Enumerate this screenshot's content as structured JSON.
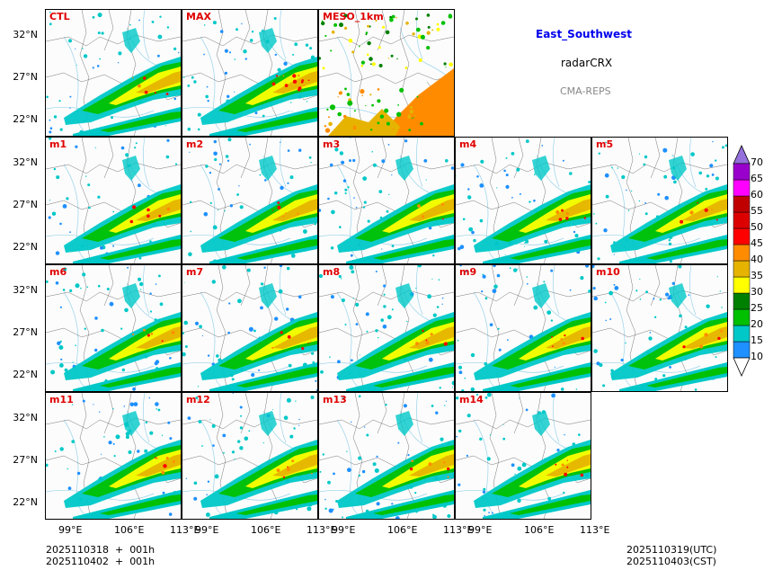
{
  "info": {
    "region": "East_Southwest",
    "variable": "radarCRX",
    "source": "CMA-REPS",
    "title_color": "#0000ee",
    "source_color": "#888888"
  },
  "panels": [
    {
      "label": "CTL",
      "style": "ens"
    },
    {
      "label": "MAX",
      "style": "max"
    },
    {
      "label": "MESO_1km",
      "style": "meso"
    },
    {
      "label": "m1",
      "style": "ens"
    },
    {
      "label": "m2",
      "style": "ens"
    },
    {
      "label": "m3",
      "style": "ens"
    },
    {
      "label": "m4",
      "style": "ens"
    },
    {
      "label": "m5",
      "style": "ens"
    },
    {
      "label": "m6",
      "style": "ens"
    },
    {
      "label": "m7",
      "style": "ens"
    },
    {
      "label": "m8",
      "style": "ens"
    },
    {
      "label": "m9",
      "style": "ens"
    },
    {
      "label": "m10",
      "style": "ens"
    },
    {
      "label": "m11",
      "style": "ens"
    },
    {
      "label": "m12",
      "style": "ens"
    },
    {
      "label": "m13",
      "style": "ens"
    },
    {
      "label": "m14",
      "style": "ens"
    }
  ],
  "axes": {
    "lat_ticks": [
      "32°N",
      "27°N",
      "22°N"
    ],
    "lon_ticks": [
      "99°E",
      "106°E",
      "113°E"
    ]
  },
  "colorbar": {
    "levels": [
      "10",
      "15",
      "20",
      "25",
      "30",
      "35",
      "40",
      "45",
      "50",
      "55",
      "60",
      "65",
      "70"
    ],
    "colors": [
      "#1e90ff",
      "#00c8c8",
      "#00c000",
      "#008000",
      "#ffff00",
      "#e6b400",
      "#ff8c00",
      "#ff0000",
      "#dd0000",
      "#c00000",
      "#ff00ff",
      "#9900cc"
    ],
    "over_color": "#9370db"
  },
  "footer": {
    "init_utc": "2025110318  +  001h",
    "init_cst": "2025110402  +  001h",
    "valid_utc": "2025110319(UTC)",
    "valid_cst": "2025110403(CST)"
  }
}
